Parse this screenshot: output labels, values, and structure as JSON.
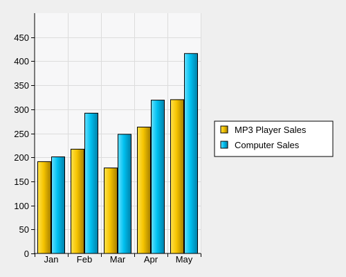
{
  "chart_data": {
    "type": "bar",
    "title": "",
    "xlabel": "",
    "ylabel": "",
    "categories": [
      "Jan",
      "Feb",
      "Mar",
      "Apr",
      "May"
    ],
    "series": [
      {
        "name": "MP3 Player Sales",
        "values": [
          191,
          217,
          178,
          263,
          320
        ],
        "color": "#f5c400"
      },
      {
        "name": "Computer Sales",
        "values": [
          201,
          292,
          248,
          319,
          416
        ],
        "color": "#00c0f0"
      }
    ],
    "ylim": [
      0,
      500
    ],
    "yticks": [
      0,
      50,
      100,
      150,
      200,
      250,
      300,
      350,
      400,
      450
    ],
    "grid": true,
    "legend_position": "right"
  }
}
